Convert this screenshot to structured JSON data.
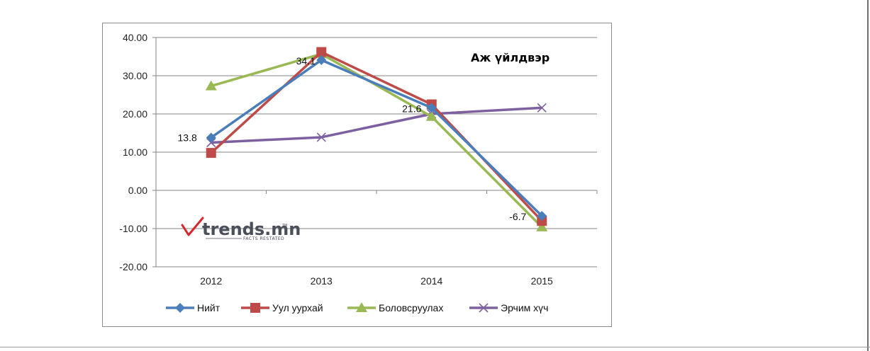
{
  "chart_data": {
    "type": "line",
    "title": "Аж үйлдвэр",
    "categories": [
      "2012",
      "2013",
      "2014",
      "2015"
    ],
    "ylim": [
      -20,
      40
    ],
    "yticks": [
      "40.00",
      "30.00",
      "20.00",
      "10.00",
      "0.00",
      "-10.00",
      "-20.00"
    ],
    "ytick_values": [
      40,
      30,
      20,
      10,
      0,
      -10,
      -20
    ],
    "grid": true,
    "legend_position": "bottom",
    "series": [
      {
        "name": "Нийт",
        "values": [
          13.8,
          34.1,
          21.6,
          -6.7
        ],
        "color": "#4a7ebb",
        "marker": "diamond",
        "labels": [
          "13.8",
          "34.1",
          "21.6",
          "-6.7"
        ]
      },
      {
        "name": "Уул уурхай",
        "values": [
          9.8,
          36.2,
          22.5,
          -8.0
        ],
        "color": "#be4b48",
        "marker": "square"
      },
      {
        "name": "Боловсруулах",
        "values": [
          27.3,
          35.7,
          19.3,
          -9.6
        ],
        "color": "#98b954",
        "marker": "triangle"
      },
      {
        "name": "Эрчим хүч",
        "values": [
          12.5,
          13.9,
          20.0,
          21.6
        ],
        "color": "#7d60a0",
        "marker": "x"
      }
    ]
  },
  "logo": {
    "text": "trends.mn",
    "trademark": "TM",
    "tagline": "FACTS RESTATED",
    "colors": {
      "check": "#d9262c",
      "text": "#4a4f5a"
    }
  }
}
